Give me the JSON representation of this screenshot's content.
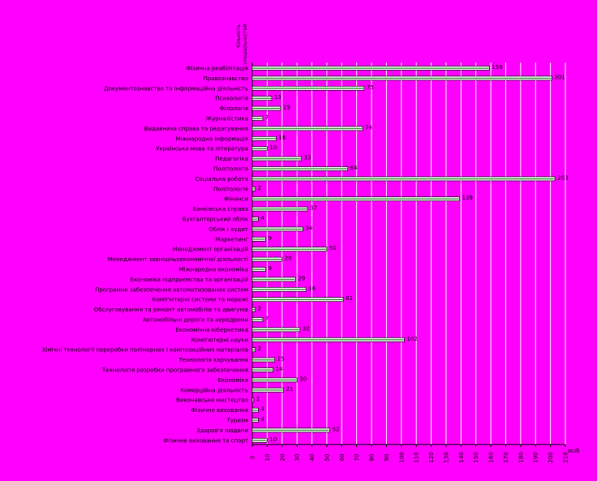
{
  "chart_data": {
    "type": "bar",
    "orientation": "horizontal",
    "legend_title": "Кількість",
    "legend_subtitle": "спеціальностей",
    "x_unit": "осіб",
    "xlim": [
      0,
      210
    ],
    "x_ticks": [
      0,
      10,
      20,
      30,
      40,
      50,
      60,
      70,
      80,
      90,
      100,
      110,
      120,
      130,
      140,
      150,
      160,
      170,
      180,
      190,
      200,
      210
    ],
    "grid": true,
    "categories": [
      "Фізична реабілітація",
      "Правознавство",
      "Документознавство та інформаційна діяльність",
      "Психологія",
      "Філологія",
      "Журналістика",
      "Видавнича справа та редагування",
      "Міжнародна інформація",
      "Українська мова та література",
      "Педагогіка",
      "Політологія",
      "Соціальна робота",
      "Політологія",
      "Фінанси",
      "Банківська справа",
      "Бухгалтерський облік",
      "Облік і аудит",
      "Маркетинг",
      "Менеджмент організацій",
      "Менеджмент зовнішньоекономічної діяльності",
      "Міжнародна економіка",
      "Економіка підприємства та організацій",
      "Програмне забезпечення автоматизованих систем",
      "Комп'ютерні системи та мережі",
      "Обслуговування та ремонт автомобілів та двигунів",
      "Автомобільні дороги та аеродроми",
      "Економічна кібернетика",
      "Комп'ютерні науки",
      "Хімічні технології переробки полімерних і композиційних матеріалів",
      "Технологія харчування",
      "Технологія розробки програмного забезпечення",
      "Економіка",
      "Комерційна діяльність",
      "Виконавське мистецтво",
      "Фізичне виховання",
      "Туризм",
      "Здоров'я людини",
      "Фізичне виховання та спорт"
    ],
    "values": [
      159,
      201,
      75,
      13,
      19,
      7,
      74,
      16,
      10,
      33,
      64,
      203,
      2,
      139,
      37,
      4,
      34,
      9,
      50,
      20,
      9,
      29,
      36,
      61,
      2,
      7,
      32,
      102,
      2,
      15,
      14,
      30,
      21,
      1,
      4,
      4,
      52,
      10
    ]
  }
}
